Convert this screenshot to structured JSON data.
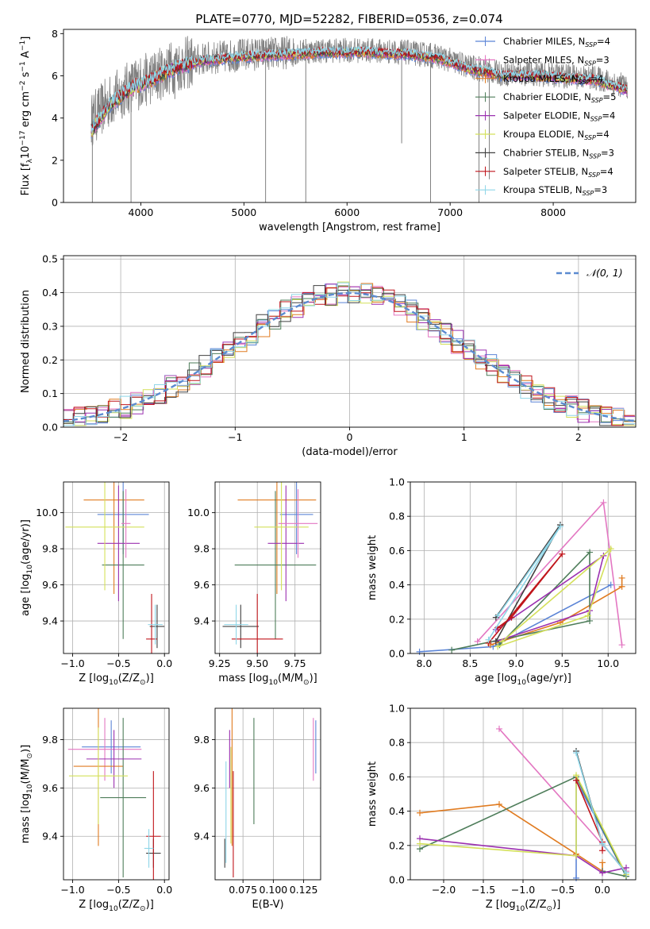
{
  "figure": {
    "title": "PLATE=0770, MJD=52282, FIBERID=0536, z=0.074"
  },
  "series_styles": [
    {
      "name": "Chabrier MILES, N_SSP=4",
      "color": "#5b84d6"
    },
    {
      "name": "Salpeter MILES, N_SSP=3",
      "color": "#e377c2"
    },
    {
      "name": "Kroupa MILES, N_SSP=4",
      "color": "#e07b20"
    },
    {
      "name": "Chabrier ELODIE, N_SSP=5",
      "color": "#4e7d5a"
    },
    {
      "name": "Salpeter ELODIE, N_SSP=4",
      "color": "#9b30b0"
    },
    {
      "name": "Kroupa ELODIE, N_SSP=4",
      "color": "#d4e05a"
    },
    {
      "name": "Chabrier STELIB, N_SSP=3",
      "color": "#404040"
    },
    {
      "name": "Salpeter STELIB, N_SSP=4",
      "color": "#c0151b"
    },
    {
      "name": "Kroupa STELIB, N_SSP=3",
      "color": "#8fd6e8"
    }
  ],
  "chart_data": [
    {
      "id": "spectrum",
      "type": "line",
      "title": "PLATE=0770, MJD=52282, FIBERID=0536, z=0.074",
      "xlabel": "wavelength [Angstrom, rest frame]",
      "ylabel": "Flux [f_λ 10^-17 erg cm^-2 s^-1 A^-1]",
      "xlim": [
        3250,
        8800
      ],
      "ylim": [
        0,
        8.2
      ],
      "xticks": [
        4000,
        5000,
        6000,
        7000,
        8000
      ],
      "yticks": [
        0,
        2,
        4,
        6,
        8
      ],
      "grid": false,
      "legend_position": "right",
      "legend": [
        {
          "base": "Chabrier MILES, N",
          "sub": "SSP",
          "suffix": "=4"
        },
        {
          "base": "Salpeter MILES, N",
          "sub": "SSP",
          "suffix": "=3"
        },
        {
          "base": "Kroupa MILES, N",
          "sub": "SSP",
          "suffix": "=4"
        },
        {
          "base": "Chabrier ELODIE, N",
          "sub": "SSP",
          "suffix": "=5"
        },
        {
          "base": "Salpeter ELODIE, N",
          "sub": "SSP",
          "suffix": "=4"
        },
        {
          "base": "Kroupa ELODIE, N",
          "sub": "SSP",
          "suffix": "=4"
        },
        {
          "base": "Chabrier STELIB, N",
          "sub": "SSP",
          "suffix": "=3"
        },
        {
          "base": "Salpeter STELIB, N",
          "sub": "SSP",
          "suffix": "=4"
        },
        {
          "base": "Kroupa STELIB, N",
          "sub": "SSP",
          "suffix": "=3"
        }
      ],
      "data_color": "#808080",
      "data_continuum": {
        "x": [
          3520,
          3700,
          3900,
          4100,
          4300,
          4600,
          5000,
          5400,
          5800,
          6200,
          6600,
          6900,
          7200,
          7500,
          7800,
          8100,
          8400,
          8720
        ],
        "y": [
          3.9,
          4.8,
          5.5,
          5.9,
          6.4,
          6.8,
          7.0,
          7.1,
          7.2,
          7.2,
          7.1,
          6.9,
          6.4,
          6.1,
          6.1,
          6.0,
          5.9,
          5.5
        ]
      },
      "model_continuum": {
        "x": [
          3520,
          3700,
          3900,
          4100,
          4300,
          4600,
          5000,
          5400,
          5800,
          6200,
          6600,
          6900,
          7200,
          7500,
          7800,
          8100,
          8400,
          8720
        ],
        "y": [
          3.4,
          4.6,
          5.4,
          5.8,
          6.3,
          6.7,
          6.9,
          7.0,
          7.1,
          7.1,
          7.0,
          6.8,
          6.3,
          6.0,
          6.0,
          5.9,
          5.8,
          5.3
        ]
      },
      "data_drops": [
        {
          "x": 3530,
          "y": 0
        },
        {
          "x": 3905,
          "y": 0
        },
        {
          "x": 4330,
          "y": 4.9
        },
        {
          "x": 5210,
          "y": 0
        },
        {
          "x": 5600,
          "y": 0
        },
        {
          "x": 6530,
          "y": 2.8
        },
        {
          "x": 6810,
          "y": 0
        },
        {
          "x": 7280,
          "y": 0
        },
        {
          "x": 7380,
          "y": 1.1
        }
      ]
    },
    {
      "id": "residuals",
      "type": "line",
      "xlabel": "(data-model)/error",
      "ylabel": "Normed distribution",
      "xlim": [
        -2.5,
        2.5
      ],
      "ylim": [
        0,
        0.51
      ],
      "xticks": [
        -2,
        -1,
        0,
        1,
        2
      ],
      "xticklabels": [
        "−2",
        "−1",
        "0",
        "1",
        "2"
      ],
      "yticks": [
        0.0,
        0.1,
        0.2,
        0.3,
        0.4,
        0.5
      ],
      "yticklabels": [
        "0.0",
        "0.1",
        "0.2",
        "0.3",
        "0.4",
        "0.5"
      ],
      "grid": true,
      "legend_position": "top-right",
      "legend_label": "𝒩(0, 1)",
      "reference_curve": {
        "name": "N(0,1)",
        "color": "#5b8bd0",
        "mean": 0,
        "sigma": 1
      },
      "histogram_series_count": 9,
      "bin_width": 0.1
    },
    {
      "id": "age_vs_Z",
      "type": "scatter",
      "xlabel": "Z [log10(Z/Z⊙)]",
      "ylabel": "age [log10(age/yr)]",
      "xlim": [
        -1.1,
        0.05
      ],
      "ylim": [
        9.22,
        10.17
      ],
      "xticks": [
        -1.0,
        -0.5,
        0.0
      ],
      "xticklabels": [
        "−1.0",
        "−0.5",
        "0.0"
      ],
      "yticks": [
        9.4,
        9.6,
        9.8,
        10.0
      ],
      "yticklabels": [
        "9.4",
        "9.6",
        "9.8",
        "10.0"
      ],
      "grid": true,
      "points": [
        {
          "series": 0,
          "x": -0.45,
          "xerr": 0.28,
          "y": 9.99,
          "yerr": 0.22
        },
        {
          "series": 2,
          "x": -0.55,
          "xerr": 0.33,
          "y": 10.07,
          "yerr": 0.52
        },
        {
          "series": 3,
          "x": -0.45,
          "xerr": 0.23,
          "y": 9.71,
          "yerr": 0.41
        },
        {
          "series": 4,
          "x": -0.5,
          "xerr": 0.23,
          "y": 9.83,
          "yerr": 0.32
        },
        {
          "series": 5,
          "x": -0.65,
          "xerr": 0.43,
          "y": 9.92,
          "yerr": 0.35
        },
        {
          "series": 1,
          "x": -0.42,
          "xerr": 0.05,
          "y": 9.94,
          "yerr": 0.19
        },
        {
          "series": 6,
          "x": -0.08,
          "xerr": 0.08,
          "y": 9.37,
          "yerr": 0.12
        },
        {
          "series": 7,
          "x": -0.14,
          "xerr": 0.06,
          "y": 9.3,
          "yerr": 0.25
        },
        {
          "series": 8,
          "x": -0.1,
          "xerr": 0.08,
          "y": 9.38,
          "yerr": 0.11
        }
      ]
    },
    {
      "id": "age_vs_mass",
      "type": "scatter",
      "xlabel": "mass [log10(M/M⊙)]",
      "ylabel": "",
      "xlim": [
        9.22,
        9.92
      ],
      "ylim": [
        9.22,
        10.17
      ],
      "xticks": [
        9.25,
        9.5,
        9.75
      ],
      "xticklabels": [
        "9.25",
        "9.50",
        "9.75"
      ],
      "yticks": [
        9.4,
        9.6,
        9.8,
        10.0
      ],
      "yticklabels": [
        "9.4",
        "9.6",
        "9.8",
        "10.0"
      ],
      "grid": true,
      "points": [
        {
          "series": 0,
          "x": 9.76,
          "xerr": 0.11,
          "y": 9.99,
          "yerr": 0.22
        },
        {
          "series": 2,
          "x": 9.63,
          "xerr": 0.26,
          "y": 10.07,
          "yerr": 0.52
        },
        {
          "series": 3,
          "x": 9.62,
          "xerr": 0.27,
          "y": 9.71,
          "yerr": 0.41
        },
        {
          "series": 4,
          "x": 9.69,
          "xerr": 0.12,
          "y": 9.83,
          "yerr": 0.32
        },
        {
          "series": 5,
          "x": 9.66,
          "xerr": 0.18,
          "y": 9.92,
          "yerr": 0.35
        },
        {
          "series": 1,
          "x": 9.77,
          "xerr": 0.13,
          "y": 9.94,
          "yerr": 0.19
        },
        {
          "series": 6,
          "x": 9.39,
          "xerr": 0.12,
          "y": 9.37,
          "yerr": 0.12
        },
        {
          "series": 7,
          "x": 9.5,
          "xerr": 0.17,
          "y": 9.3,
          "yerr": 0.25
        },
        {
          "series": 8,
          "x": 9.36,
          "xerr": 0.08,
          "y": 9.38,
          "yerr": 0.11
        }
      ]
    },
    {
      "id": "weight_vs_age",
      "type": "line",
      "xlabel": "age [log10(age/yr)]",
      "ylabel": "mass weight",
      "xlim": [
        7.85,
        10.3
      ],
      "ylim": [
        0,
        1.0
      ],
      "xticks": [
        8.0,
        8.5,
        9.0,
        9.5,
        10.0
      ],
      "xticklabels": [
        "8.0",
        "8.5",
        "9.0",
        "9.5",
        "10.0"
      ],
      "yticks": [
        0.0,
        0.2,
        0.4,
        0.6,
        0.8,
        1.0
      ],
      "yticklabels": [
        "0.0",
        "0.2",
        "0.4",
        "0.6",
        "0.8",
        "1.0"
      ],
      "grid": true,
      "series": [
        {
          "series": 0,
          "x": [
            7.95,
            8.75,
            10.03
          ],
          "y": [
            0.01,
            0.04,
            0.4
          ]
        },
        {
          "series": 1,
          "x": [
            8.58,
            9.95,
            10.15
          ],
          "y": [
            0.07,
            0.88,
            0.05
          ]
        },
        {
          "series": 2,
          "x": [
            8.72,
            9.48,
            10.15,
            10.15
          ],
          "y": [
            0.05,
            0.18,
            0.39,
            0.44
          ]
        },
        {
          "series": 3,
          "x": [
            8.3,
            9.8,
            9.8,
            8.82
          ],
          "y": [
            0.02,
            0.19,
            0.59,
            0.05
          ]
        },
        {
          "series": 4,
          "x": [
            8.78,
            9.8,
            9.95,
            8.78
          ],
          "y": [
            0.07,
            0.25,
            0.57,
            0.14
          ]
        },
        {
          "series": 5,
          "x": [
            8.8,
            9.78,
            10.03,
            8.85
          ],
          "y": [
            0.04,
            0.22,
            0.61,
            0.07
          ]
        },
        {
          "series": 6,
          "x": [
            8.78,
            9.48,
            8.78
          ],
          "y": [
            0.07,
            0.75,
            0.21
          ]
        },
        {
          "series": 7,
          "x": [
            8.7,
            9.5,
            8.95,
            8.8
          ],
          "y": [
            0.06,
            0.58,
            0.21,
            0.15
          ]
        },
        {
          "series": 8,
          "x": [
            8.7,
            9.48,
            8.8
          ],
          "y": [
            0.08,
            0.74,
            0.22
          ]
        }
      ]
    },
    {
      "id": "mass_vs_Z",
      "type": "scatter",
      "xlabel": "Z [log10(Z/Z⊙)]",
      "ylabel": "mass [log10(M/M⊙)]",
      "xlim": [
        -1.1,
        0.05
      ],
      "ylim": [
        9.22,
        9.93
      ],
      "xticks": [
        -1.0,
        -0.5,
        0.0
      ],
      "xticklabels": [
        "−1.0",
        "−0.5",
        "0.0"
      ],
      "yticks": [
        9.4,
        9.6,
        9.8
      ],
      "yticklabels": [
        "9.4",
        "9.6",
        "9.8"
      ],
      "grid": true,
      "points": [
        {
          "series": 0,
          "x": -0.58,
          "xerr": 0.32,
          "y": 9.77,
          "yerr": 0.11
        },
        {
          "series": 1,
          "x": -0.65,
          "xerr": 0.4,
          "y": 9.76,
          "yerr": 0.13
        },
        {
          "series": 2,
          "x": -0.72,
          "xerr": 0.27,
          "y": 9.69,
          "yerr": 0.33
        },
        {
          "series": 3,
          "x": -0.45,
          "xerr": 0.25,
          "y": 9.56,
          "yerr": 0.33
        },
        {
          "series": 4,
          "x": -0.55,
          "xerr": 0.3,
          "y": 9.72,
          "yerr": 0.12
        },
        {
          "series": 5,
          "x": -0.72,
          "xerr": 0.32,
          "y": 9.65,
          "yerr": 0.2
        },
        {
          "series": 6,
          "x": -0.12,
          "xerr": 0.08,
          "y": 9.33,
          "yerr": 0.06
        },
        {
          "series": 7,
          "x": -0.12,
          "xerr": 0.08,
          "y": 9.4,
          "yerr": 0.27
        },
        {
          "series": 8,
          "x": -0.17,
          "xerr": 0.05,
          "y": 9.35,
          "yerr": 0.08
        }
      ]
    },
    {
      "id": "mass_vs_ebv",
      "type": "scatter",
      "xlabel": "E(B-V)",
      "ylabel": "",
      "xlim": [
        0.052,
        0.139
      ],
      "ylim": [
        9.22,
        9.93
      ],
      "xticks": [
        0.075,
        0.1,
        0.125
      ],
      "xticklabels": [
        "0.075",
        "0.100",
        "0.125"
      ],
      "yticks": [
        9.4,
        9.6,
        9.8
      ],
      "yticklabels": [
        "9.4",
        "9.6",
        "9.8"
      ],
      "grid": true,
      "points": [
        {
          "series": 0,
          "x": 0.135,
          "xerr": 0,
          "y": 9.77,
          "yerr": 0.11
        },
        {
          "series": 1,
          "x": 0.133,
          "xerr": 0,
          "y": 9.76,
          "yerr": 0.13
        },
        {
          "series": 2,
          "x": 0.066,
          "xerr": 0,
          "y": 9.69,
          "yerr": 0.33
        },
        {
          "series": 3,
          "x": 0.084,
          "xerr": 0,
          "y": 9.67,
          "yerr": 0.22
        },
        {
          "series": 4,
          "x": 0.064,
          "xerr": 0,
          "y": 9.72,
          "yerr": 0.12
        },
        {
          "series": 5,
          "x": 0.065,
          "xerr": 0,
          "y": 9.57,
          "yerr": 0.2
        },
        {
          "series": 6,
          "x": 0.06,
          "xerr": 0,
          "y": 9.33,
          "yerr": 0.06
        },
        {
          "series": 7,
          "x": 0.067,
          "xerr": 0,
          "y": 9.45,
          "yerr": 0.22
        },
        {
          "series": 8,
          "x": 0.061,
          "xerr": 0,
          "y": 9.5,
          "yerr": 0.21
        }
      ]
    },
    {
      "id": "weight_vs_Z",
      "type": "line",
      "xlabel": "Z [log10(Z/Z⊙)]",
      "ylabel": "mass weight",
      "xlim": [
        -2.42,
        0.42
      ],
      "ylim": [
        0,
        1.0
      ],
      "xticks": [
        -2.0,
        -1.5,
        -1.0,
        -0.5,
        0.0
      ],
      "xticklabels": [
        "−2.0",
        "−1.5",
        "−1.0",
        "−0.5",
        "0.0"
      ],
      "yticks": [
        0.0,
        0.2,
        0.4,
        0.6,
        0.8,
        1.0
      ],
      "yticklabels": [
        "0.0",
        "0.2",
        "0.4",
        "0.6",
        "0.8",
        "1.0"
      ],
      "grid": true,
      "series": [
        {
          "series": 0,
          "x": [
            -0.33,
            -0.33,
            0.3
          ],
          "y": [
            0.01,
            0.58,
            0.02
          ]
        },
        {
          "series": 1,
          "x": [
            -1.3,
            0.3
          ],
          "y": [
            0.88,
            0.05
          ]
        },
        {
          "series": 2,
          "x": [
            -2.3,
            -1.3,
            -0.33,
            0.0,
            0.0
          ],
          "y": [
            0.39,
            0.44,
            0.15,
            0.05,
            0.1
          ]
        },
        {
          "series": 3,
          "x": [
            -2.3,
            -0.33,
            0.3,
            0.0
          ],
          "y": [
            0.18,
            0.6,
            0.02,
            0.05
          ]
        },
        {
          "series": 4,
          "x": [
            -2.3,
            -0.33,
            0.0,
            0.3
          ],
          "y": [
            0.24,
            0.14,
            0.04,
            0.07
          ]
        },
        {
          "series": 5,
          "x": [
            -2.3,
            -0.33,
            -0.33,
            0.3
          ],
          "y": [
            0.21,
            0.14,
            0.61,
            0.03
          ]
        },
        {
          "series": 6,
          "x": [
            -0.33,
            0.0,
            0.3
          ],
          "y": [
            0.75,
            0.21,
            0.04
          ]
        },
        {
          "series": 7,
          "x": [
            -0.33,
            0.0,
            0.0
          ],
          "y": [
            0.58,
            0.22,
            0.17
          ]
        },
        {
          "series": 8,
          "x": [
            -0.33,
            0.0,
            0.3
          ],
          "y": [
            0.74,
            0.21,
            0.04
          ]
        }
      ]
    }
  ]
}
